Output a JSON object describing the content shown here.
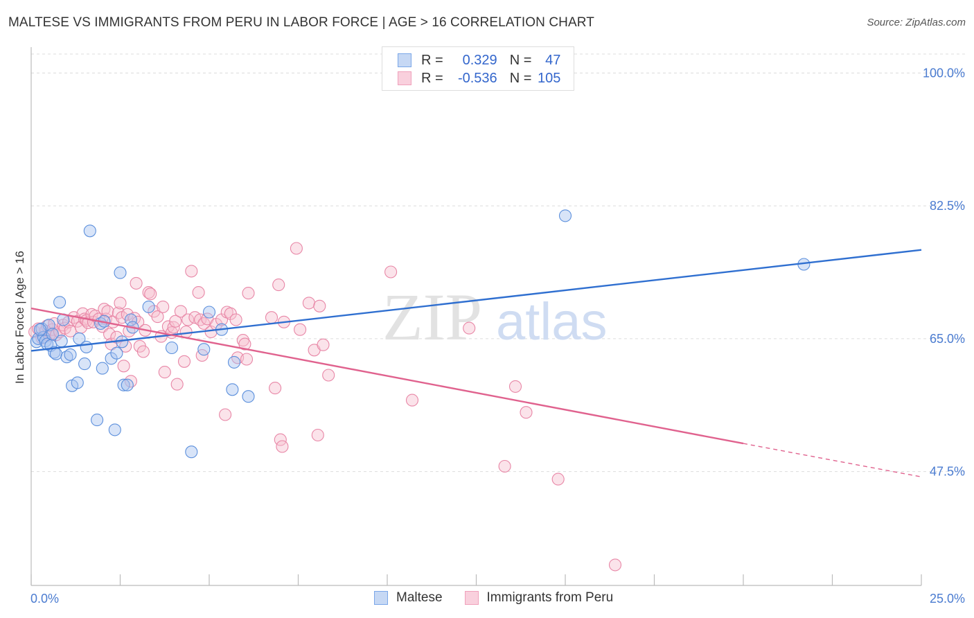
{
  "title": "MALTESE VS IMMIGRANTS FROM PERU IN LABOR FORCE | AGE > 16 CORRELATION CHART",
  "source": "Source: ZipAtlas.com",
  "watermark": {
    "zip": "ZIP",
    "atlas": "atlas"
  },
  "legend": {
    "rows": [
      {
        "r_label": "R =",
        "r_value": "0.329",
        "n_label": "N =",
        "n_value": "47",
        "color": "#7aa6e8"
      },
      {
        "r_label": "R =",
        "r_value": "-0.536",
        "n_label": "N =",
        "n_value": "105",
        "color": "#f0a0bb"
      }
    ]
  },
  "bottom_legend": {
    "maltese": "Maltese",
    "peru": "Immigrants from Peru"
  },
  "chart_data": {
    "type": "scatter",
    "ylabel": "In Labor Force | Age > 16",
    "xlim": [
      0,
      25
    ],
    "ylim": [
      32.5,
      102.5
    ],
    "x_tick_labels": [
      "0.0%",
      "25.0%"
    ],
    "y_ticks": [
      100.0,
      82.5,
      65.0,
      47.5
    ],
    "y_tick_labels": [
      "100.0%",
      "82.5%",
      "65.0%",
      "47.5%"
    ],
    "grid": true,
    "series": [
      {
        "name": "Maltese",
        "color": "#5b8fdc",
        "fill": "#a8c4f0",
        "trend": {
          "x0": 0.0,
          "y0": 63.4,
          "x1": 25.0,
          "y1": 76.7
        },
        "points": [
          [
            0.15,
            64.6
          ],
          [
            0.2,
            65.0
          ],
          [
            0.3,
            66.3
          ],
          [
            0.35,
            65.2
          ],
          [
            0.4,
            64.7
          ],
          [
            0.45,
            64.3
          ],
          [
            0.5,
            66.8
          ],
          [
            0.55,
            64.1
          ],
          [
            0.6,
            65.6
          ],
          [
            0.65,
            63.2
          ],
          [
            0.7,
            63.0
          ],
          [
            0.8,
            69.8
          ],
          [
            0.85,
            64.7
          ],
          [
            0.9,
            67.5
          ],
          [
            1.0,
            62.6
          ],
          [
            1.1,
            62.9
          ],
          [
            1.15,
            58.8
          ],
          [
            1.3,
            59.2
          ],
          [
            1.35,
            65.0
          ],
          [
            1.5,
            61.7
          ],
          [
            1.55,
            63.9
          ],
          [
            1.65,
            79.2
          ],
          [
            1.85,
            54.3
          ],
          [
            1.95,
            67.0
          ],
          [
            2.0,
            61.1
          ],
          [
            2.05,
            67.3
          ],
          [
            2.25,
            62.4
          ],
          [
            2.35,
            53.0
          ],
          [
            2.4,
            63.1
          ],
          [
            2.5,
            73.7
          ],
          [
            2.55,
            64.6
          ],
          [
            2.6,
            58.9
          ],
          [
            2.7,
            58.9
          ],
          [
            2.8,
            67.5
          ],
          [
            2.85,
            66.5
          ],
          [
            3.3,
            69.2
          ],
          [
            3.95,
            63.8
          ],
          [
            4.5,
            50.1
          ],
          [
            4.85,
            63.6
          ],
          [
            5.0,
            68.5
          ],
          [
            5.35,
            66.2
          ],
          [
            5.65,
            58.3
          ],
          [
            5.7,
            61.9
          ],
          [
            6.1,
            57.4
          ],
          [
            15.0,
            81.2
          ],
          [
            21.7,
            74.8
          ],
          [
            0.25,
            66.2
          ]
        ]
      },
      {
        "name": "Immigrants from Peru",
        "color": "#e886a6",
        "fill": "#f6c0d0",
        "trend": {
          "x0": 0.0,
          "y0": 69.0,
          "x1": 20.0,
          "y1": 51.2
        },
        "trend_dash": {
          "x0": 20.0,
          "y0": 51.2,
          "x1": 25.0,
          "y1": 46.8
        },
        "points": [
          [
            0.1,
            65.9
          ],
          [
            0.2,
            66.3
          ],
          [
            0.3,
            65.1
          ],
          [
            0.4,
            66.0
          ],
          [
            0.45,
            66.7
          ],
          [
            0.5,
            65.4
          ],
          [
            0.55,
            65.7
          ],
          [
            0.6,
            66.2
          ],
          [
            0.65,
            67.0
          ],
          [
            0.7,
            65.5
          ],
          [
            0.8,
            65.9
          ],
          [
            0.9,
            66.8
          ],
          [
            0.95,
            66.4
          ],
          [
            1.05,
            67.2
          ],
          [
            1.1,
            66.0
          ],
          [
            1.2,
            67.8
          ],
          [
            1.3,
            67.3
          ],
          [
            1.4,
            66.5
          ],
          [
            1.45,
            68.3
          ],
          [
            1.5,
            67.6
          ],
          [
            1.55,
            67.4
          ],
          [
            1.6,
            67.1
          ],
          [
            1.7,
            68.2
          ],
          [
            1.75,
            67.2
          ],
          [
            1.8,
            68.0
          ],
          [
            1.9,
            67.6
          ],
          [
            2.0,
            66.6
          ],
          [
            2.05,
            68.9
          ],
          [
            2.1,
            67.6
          ],
          [
            2.15,
            68.6
          ],
          [
            2.2,
            65.6
          ],
          [
            2.25,
            64.3
          ],
          [
            2.3,
            67.2
          ],
          [
            2.4,
            65.2
          ],
          [
            2.45,
            68.4
          ],
          [
            2.5,
            69.7
          ],
          [
            2.55,
            67.8
          ],
          [
            2.6,
            61.4
          ],
          [
            2.65,
            64.0
          ],
          [
            2.7,
            68.2
          ],
          [
            2.75,
            66.0
          ],
          [
            2.8,
            59.4
          ],
          [
            2.9,
            67.7
          ],
          [
            2.95,
            72.3
          ],
          [
            3.0,
            67.2
          ],
          [
            3.05,
            64.0
          ],
          [
            3.15,
            63.3
          ],
          [
            3.2,
            66.1
          ],
          [
            3.3,
            71.1
          ],
          [
            3.35,
            70.9
          ],
          [
            3.45,
            68.6
          ],
          [
            3.55,
            67.9
          ],
          [
            3.65,
            65.3
          ],
          [
            3.7,
            69.2
          ],
          [
            3.75,
            60.6
          ],
          [
            3.85,
            66.6
          ],
          [
            3.95,
            65.8
          ],
          [
            4.0,
            66.5
          ],
          [
            4.05,
            67.3
          ],
          [
            4.1,
            59.0
          ],
          [
            4.2,
            68.6
          ],
          [
            4.3,
            62.0
          ],
          [
            4.35,
            65.9
          ],
          [
            4.4,
            67.5
          ],
          [
            4.5,
            73.9
          ],
          [
            4.6,
            67.8
          ],
          [
            4.7,
            71.1
          ],
          [
            4.75,
            67.5
          ],
          [
            4.8,
            62.8
          ],
          [
            4.85,
            67.0
          ],
          [
            4.95,
            67.6
          ],
          [
            5.05,
            65.9
          ],
          [
            5.2,
            66.9
          ],
          [
            5.35,
            67.5
          ],
          [
            5.45,
            55.0
          ],
          [
            5.5,
            68.5
          ],
          [
            5.6,
            68.3
          ],
          [
            5.75,
            67.5
          ],
          [
            5.8,
            62.5
          ],
          [
            5.95,
            64.8
          ],
          [
            6.0,
            64.3
          ],
          [
            6.05,
            62.3
          ],
          [
            6.1,
            71.0
          ],
          [
            6.75,
            67.8
          ],
          [
            6.85,
            58.5
          ],
          [
            6.95,
            72.1
          ],
          [
            7.0,
            51.7
          ],
          [
            7.05,
            50.8
          ],
          [
            7.1,
            67.2
          ],
          [
            7.45,
            76.9
          ],
          [
            7.55,
            66.2
          ],
          [
            7.8,
            69.7
          ],
          [
            7.95,
            63.5
          ],
          [
            8.05,
            52.3
          ],
          [
            8.1,
            69.3
          ],
          [
            8.2,
            64.2
          ],
          [
            8.35,
            60.2
          ],
          [
            10.1,
            73.8
          ],
          [
            10.7,
            56.9
          ],
          [
            12.3,
            66.4
          ],
          [
            13.3,
            48.2
          ],
          [
            13.6,
            58.7
          ],
          [
            13.9,
            55.3
          ],
          [
            14.8,
            46.5
          ],
          [
            16.4,
            35.2
          ]
        ]
      }
    ]
  }
}
